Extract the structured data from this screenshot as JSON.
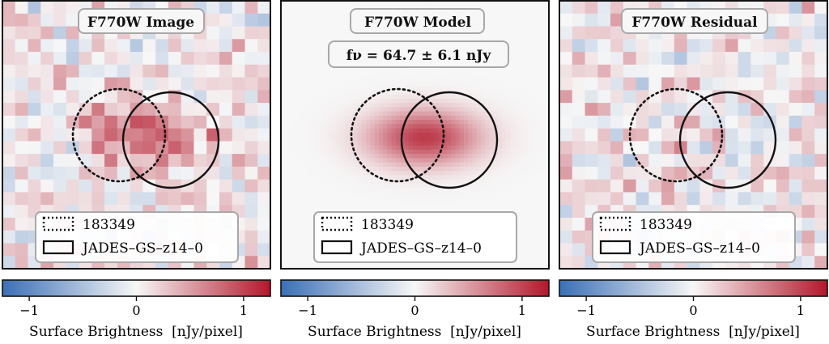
{
  "panels": [
    {
      "title": "F770W Image",
      "flux": "",
      "legend": [
        {
          "style": "dotted",
          "label": "183349"
        },
        {
          "style": "solid",
          "label": "JADES–GS–z14–0"
        }
      ],
      "seed": 11,
      "noise": 0.34,
      "source_amp": 0.95
    },
    {
      "title": "F770W Model",
      "flux": "fν = 64.7 ± 6.1 nJy",
      "legend": [
        {
          "style": "dotted",
          "label": "183349"
        },
        {
          "style": "solid",
          "label": "JADES–GS–z14–0"
        }
      ],
      "seed": 0,
      "noise": 0,
      "source_amp": 1.0
    },
    {
      "title": "F770W Residual",
      "flux": "",
      "legend": [
        {
          "style": "dotted",
          "label": "183349"
        },
        {
          "style": "solid",
          "label": "JADES–GS–z14–0"
        }
      ],
      "seed": 29,
      "noise": 0.34,
      "source_amp": 0.08
    }
  ],
  "colorbar": {
    "label": "Surface Brightness  [nJy/pixel]",
    "ticks": [
      {
        "value": -1,
        "label": "−1"
      },
      {
        "value": 0,
        "label": "0"
      },
      {
        "value": 1,
        "label": "1"
      }
    ],
    "range": [
      -1.25,
      1.25
    ],
    "colors": {
      "low": "#3b6fb6",
      "mid": "#f7f7f7",
      "high": "#b2182b"
    }
  }
}
